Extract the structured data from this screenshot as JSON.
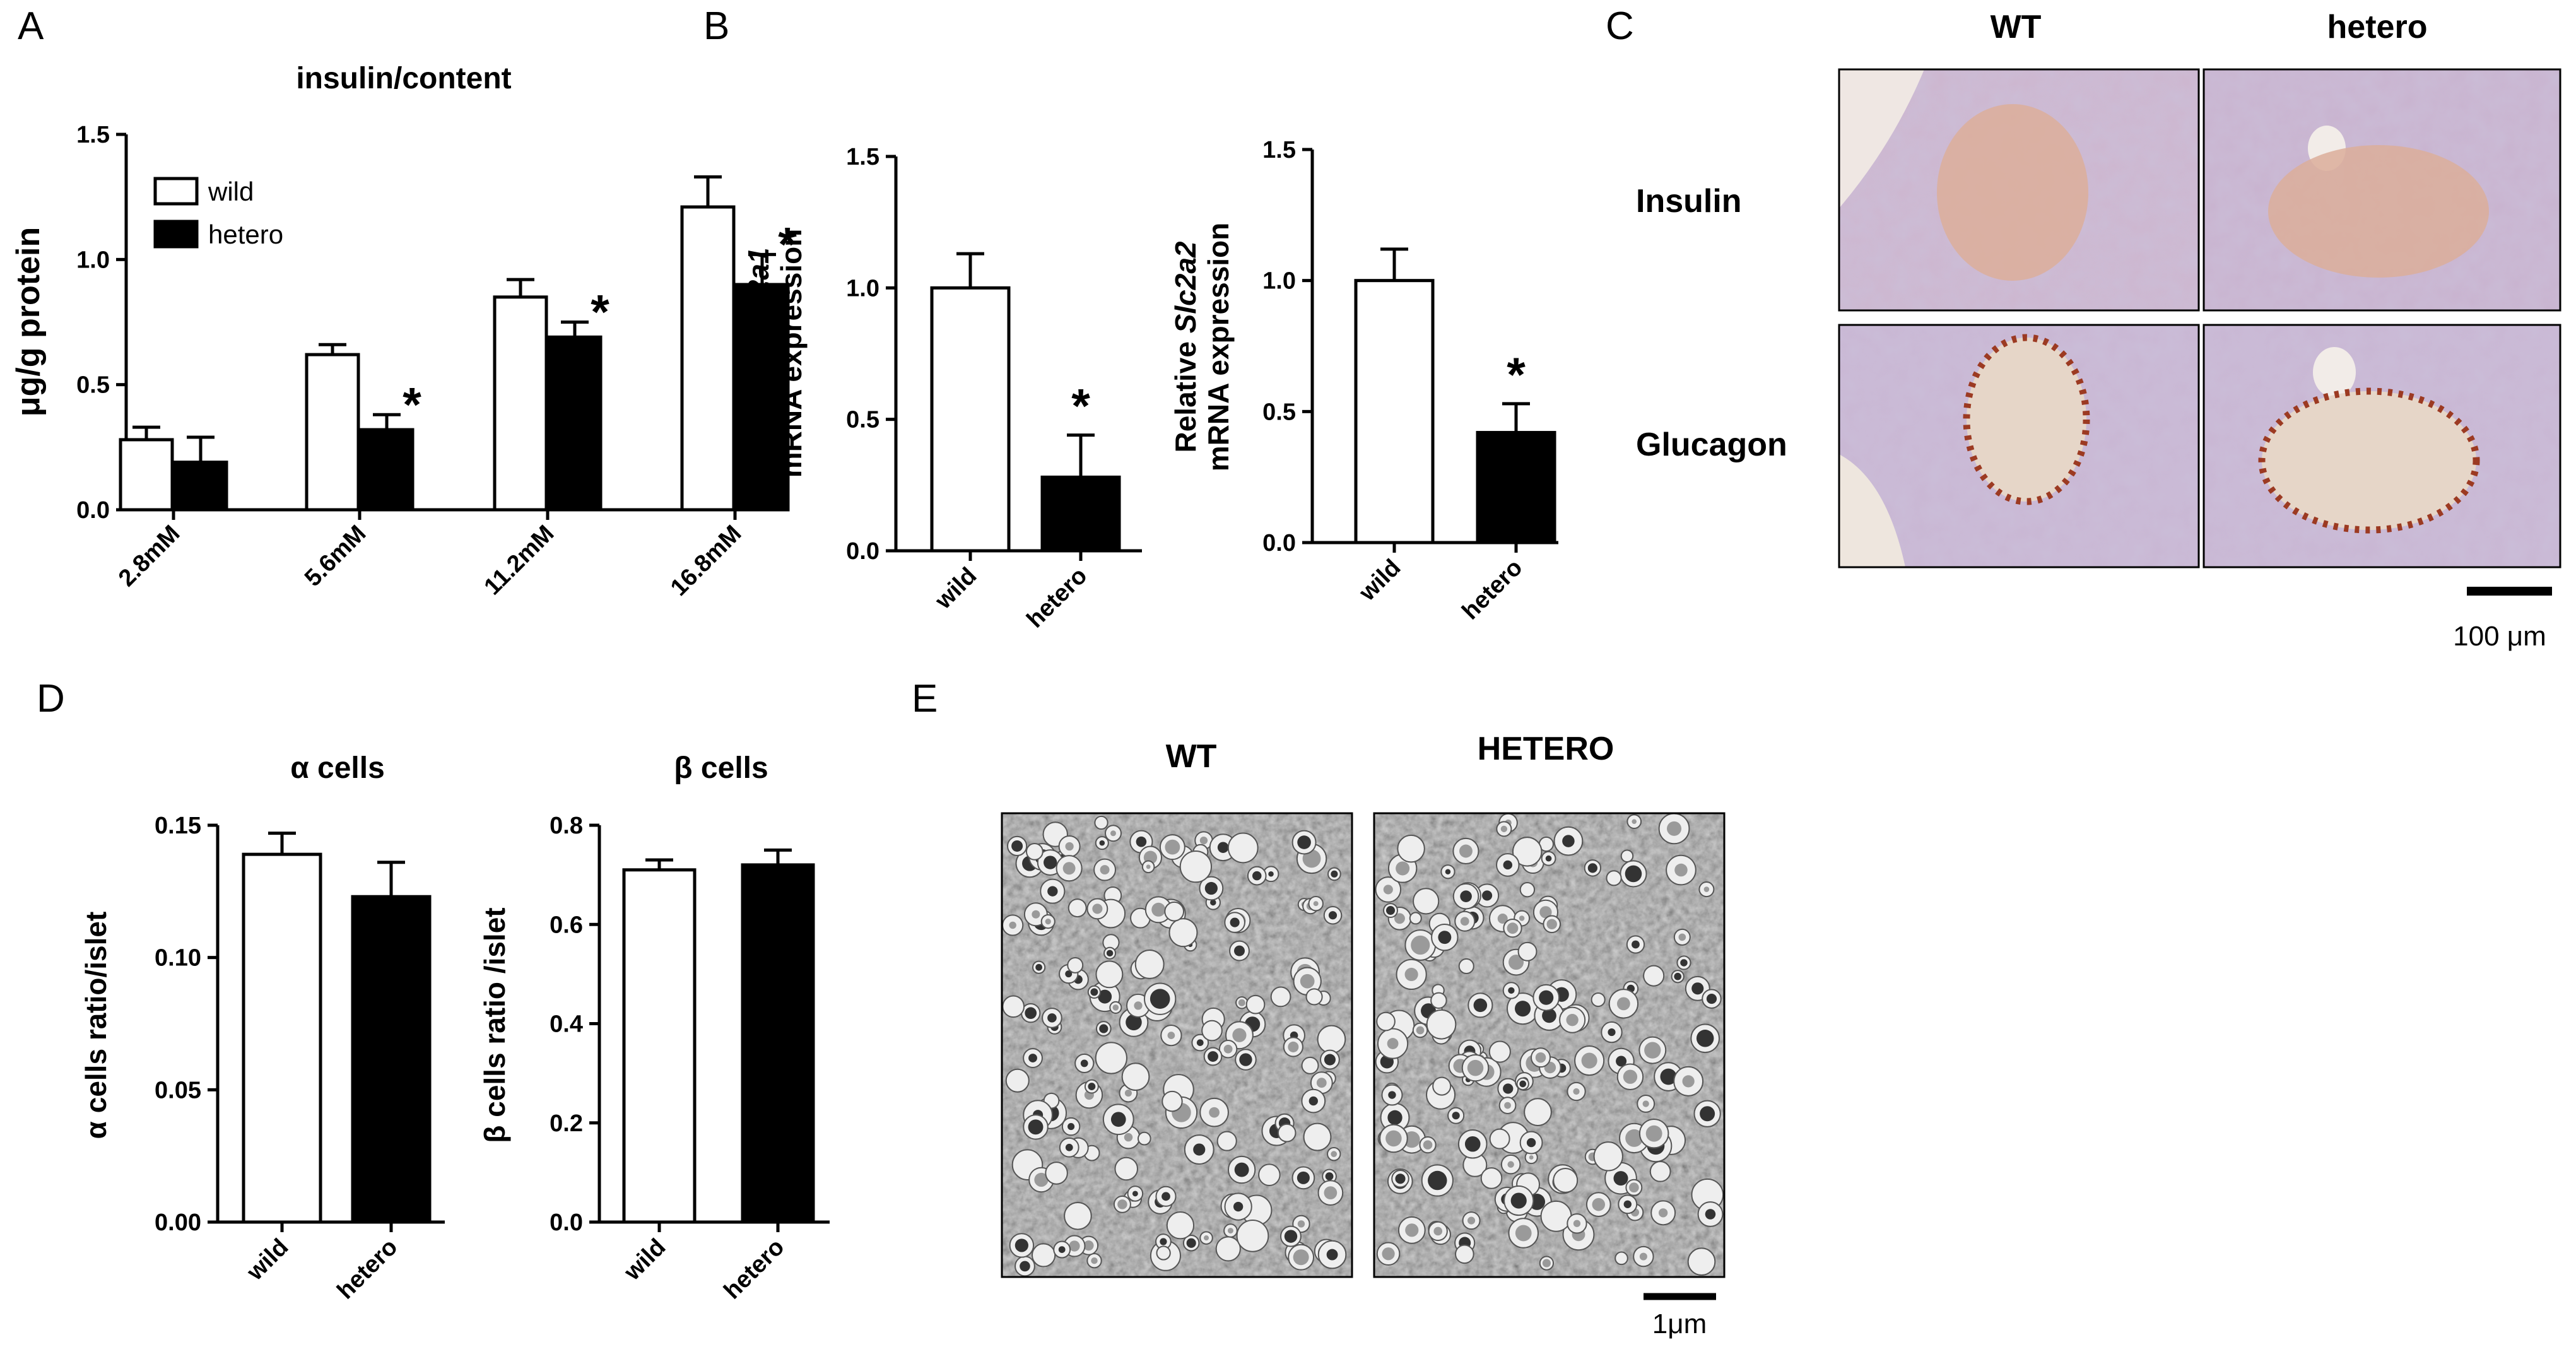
{
  "panels": {
    "A": "A",
    "B": "B",
    "C": "C",
    "D": "D",
    "E": "E"
  },
  "chart_data": [
    {
      "id": "A",
      "type": "bar",
      "title": "insulin/content",
      "ylabel": "μg/g protein",
      "xlabel": "",
      "ylim": [
        0,
        1.5
      ],
      "yticks": [
        "0.0",
        "0.5",
        "1.0",
        "1.5"
      ],
      "categories": [
        "2.8mM",
        "5.6mM",
        "11.2mM",
        "16.8mM"
      ],
      "series": [
        {
          "name": "wild",
          "color": "#ffffff",
          "values": [
            0.28,
            0.62,
            0.85,
            1.21
          ],
          "errors": [
            0.05,
            0.04,
            0.07,
            0.12
          ],
          "significant": [
            false,
            false,
            false,
            false
          ]
        },
        {
          "name": "hetero",
          "color": "#000000",
          "values": [
            0.19,
            0.32,
            0.69,
            0.9
          ],
          "errors": [
            0.1,
            0.06,
            0.06,
            0.12
          ],
          "significant": [
            false,
            true,
            true,
            true
          ]
        }
      ],
      "legend": "top-left",
      "significance_mark": "*"
    },
    {
      "id": "B1",
      "type": "bar",
      "title": "",
      "ylabel_line1_prefix": "Relative ",
      "ylabel_gene": "Slc2a1",
      "ylabel_line2": "mRNA expression",
      "ylim": [
        0,
        1.5
      ],
      "yticks": [
        "0.0",
        "0.5",
        "1.0",
        "1.5"
      ],
      "categories": [
        "wild",
        "hetero"
      ],
      "series": [
        {
          "values": [
            1.0,
            0.28
          ],
          "errors": [
            0.13,
            0.16
          ],
          "colors": [
            "#ffffff",
            "#000000"
          ],
          "significant": [
            false,
            true
          ]
        }
      ],
      "significance_mark": "*"
    },
    {
      "id": "B2",
      "type": "bar",
      "title": "",
      "ylabel_line1_prefix": "Relative ",
      "ylabel_gene": "Slc2a2",
      "ylabel_line2": "mRNA expression",
      "ylim": [
        0,
        1.5
      ],
      "yticks": [
        "0.0",
        "0.5",
        "1.0",
        "1.5"
      ],
      "categories": [
        "wild",
        "hetero"
      ],
      "series": [
        {
          "values": [
            1.0,
            0.42
          ],
          "errors": [
            0.12,
            0.11
          ],
          "colors": [
            "#ffffff",
            "#000000"
          ],
          "significant": [
            false,
            true
          ]
        }
      ],
      "significance_mark": "*"
    },
    {
      "id": "D1",
      "type": "bar",
      "title": "α cells",
      "ylabel": "α cells ratio/islet",
      "ylim": [
        0,
        0.15
      ],
      "yticks": [
        "0.00",
        "0.05",
        "0.10",
        "0.15"
      ],
      "categories": [
        "wild",
        "hetero"
      ],
      "series": [
        {
          "values": [
            0.139,
            0.123
          ],
          "errors": [
            0.008,
            0.013
          ],
          "colors": [
            "#ffffff",
            "#000000"
          ],
          "significant": [
            false,
            false
          ]
        }
      ]
    },
    {
      "id": "D2",
      "type": "bar",
      "title": "β cells",
      "ylabel": "β cells ratio /islet",
      "ylim": [
        0,
        0.8
      ],
      "yticks": [
        "0.0",
        "0.2",
        "0.4",
        "0.6",
        "0.8"
      ],
      "categories": [
        "wild",
        "hetero"
      ],
      "series": [
        {
          "values": [
            0.71,
            0.72
          ],
          "errors": [
            0.02,
            0.03
          ],
          "colors": [
            "#ffffff",
            "#000000"
          ],
          "significant": [
            false,
            false
          ]
        }
      ]
    }
  ],
  "micrographs_C": {
    "col_headers": [
      "WT",
      "hetero"
    ],
    "row_headers": [
      "Insulin",
      "Glucagon"
    ],
    "scale_bar": "100 μm"
  },
  "micrographs_E": {
    "col_headers": [
      "WT",
      "HETERO"
    ],
    "scale_bar": "1μm"
  }
}
